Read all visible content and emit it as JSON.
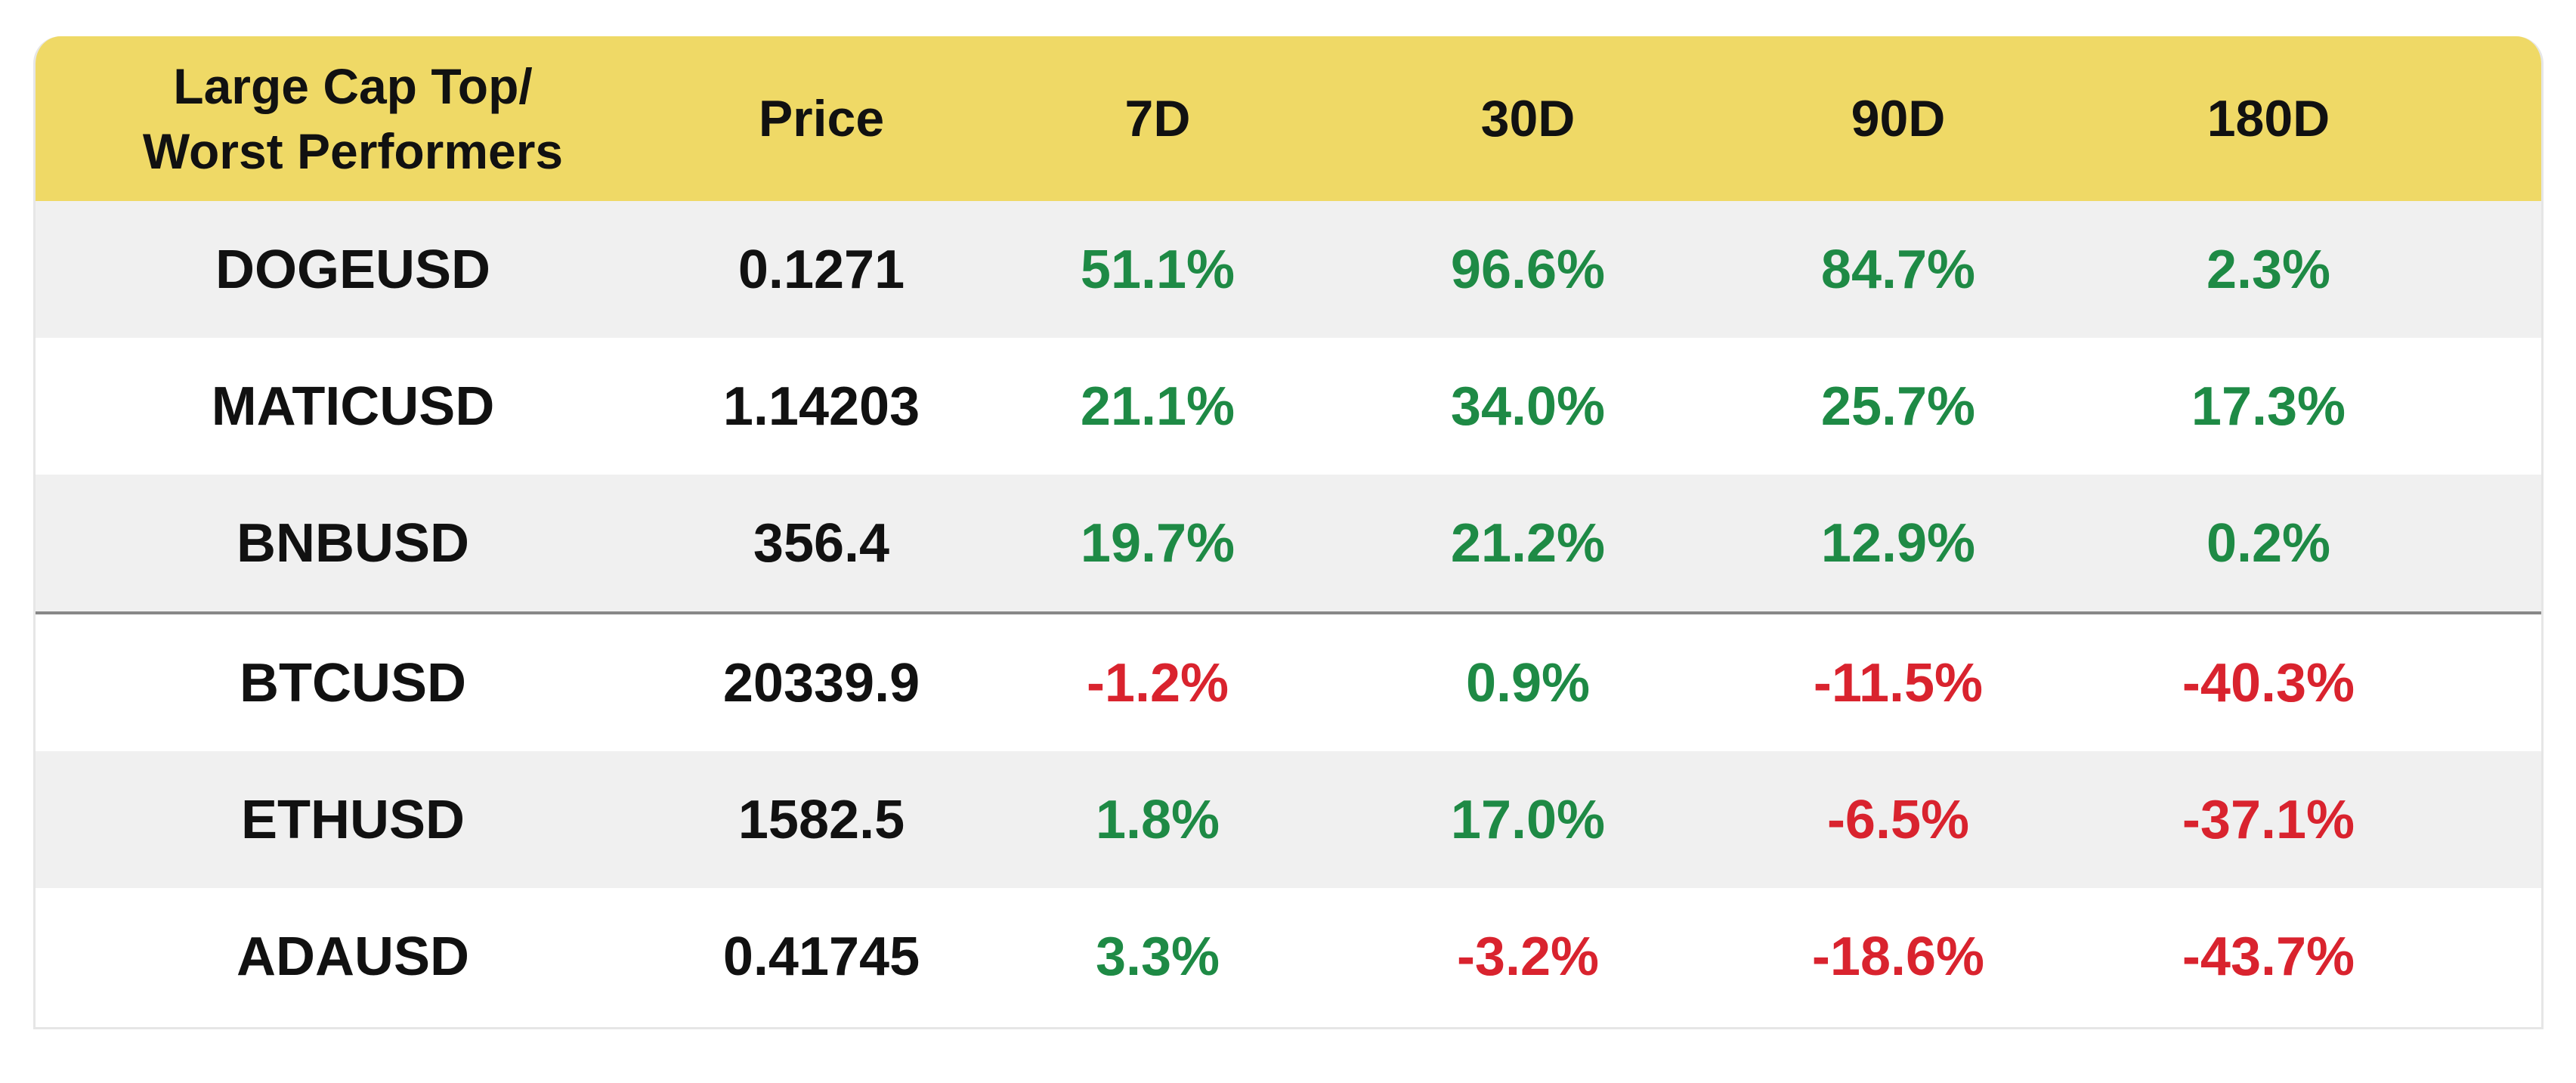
{
  "header": {
    "col_name_line1": "Large Cap Top/",
    "col_name_line2": "Worst Performers",
    "col_price": "Price",
    "col_7d": "7D",
    "col_30d": "30D",
    "col_90d": "90D",
    "col_180d": "180D"
  },
  "colors": {
    "header_bg": "#efd966",
    "positive": "#1e8a45",
    "negative": "#d9232e",
    "row_shade": "#f0f0f0"
  },
  "rows": [
    {
      "symbol": "DOGEUSD",
      "price": "0.1271",
      "d7": "51.1%",
      "d30": "96.6%",
      "d90": "84.7%",
      "d180": "2.3%"
    },
    {
      "symbol": "MATICUSD",
      "price": "1.14203",
      "d7": "21.1%",
      "d30": "34.0%",
      "d90": "25.7%",
      "d180": "17.3%"
    },
    {
      "symbol": "BNBUSD",
      "price": "356.4",
      "d7": "19.7%",
      "d30": "21.2%",
      "d90": "12.9%",
      "d180": "0.2%"
    },
    {
      "symbol": "BTCUSD",
      "price": "20339.9",
      "d7": "-1.2%",
      "d30": "0.9%",
      "d90": "-11.5%",
      "d180": "-40.3%"
    },
    {
      "symbol": "ETHUSD",
      "price": "1582.5",
      "d7": "1.8%",
      "d30": "17.0%",
      "d90": "-6.5%",
      "d180": "-37.1%"
    },
    {
      "symbol": "ADAUSD",
      "price": "0.41745",
      "d7": "3.3%",
      "d30": "-3.2%",
      "d90": "-18.6%",
      "d180": "-43.7%"
    }
  ]
}
